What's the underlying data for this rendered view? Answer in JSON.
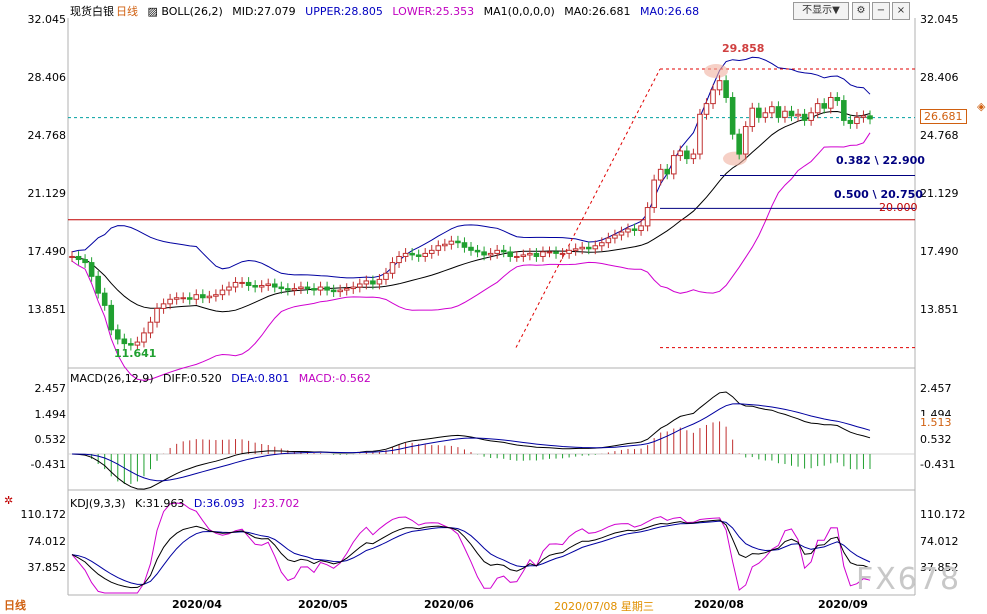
{
  "title": "现货白银",
  "period": "日线",
  "chart_data": {
    "type": "candlestick",
    "instrument": "现货白银",
    "period": "日线",
    "x_labels": [
      "2020/04",
      "2020/05",
      "2020/06",
      "2020/07/08 星期三",
      "2020/08",
      "2020/09"
    ],
    "price_axis": {
      "ticks": [
        "32.045",
        "28.406",
        "24.768",
        "21.129",
        "17.490",
        "13.851"
      ],
      "range": [
        10.5,
        33.2
      ]
    },
    "series": [
      {
        "name": "BOLL(26,2)",
        "values_label": [
          "MID:27.079",
          "UPPER:28.805",
          "LOWER:25.353"
        ]
      },
      {
        "name": "MA1(0,0,0,0)",
        "values_label": [
          "MA0:26.681",
          "MA0:26.68"
        ]
      }
    ],
    "close": [
      17.6,
      17.4,
      17.2,
      16.3,
      15.2,
      14.4,
      12.8,
      12.2,
      11.9,
      11.8,
      12.0,
      12.6,
      13.3,
      14.2,
      14.5,
      14.8,
      14.9,
      14.9,
      14.8,
      15.1,
      14.9,
      15.0,
      15.1,
      15.4,
      15.6,
      15.9,
      15.9,
      15.7,
      15.6,
      15.7,
      15.8,
      15.6,
      15.5,
      15.4,
      15.5,
      15.6,
      15.5,
      15.4,
      15.6,
      15.4,
      15.3,
      15.4,
      15.5,
      15.6,
      15.8,
      16.0,
      15.8,
      16.1,
      16.5,
      17.2,
      17.6,
      17.8,
      17.7,
      17.6,
      17.8,
      18.0,
      18.3,
      18.4,
      18.6,
      18.5,
      18.2,
      18.0,
      17.9,
      17.7,
      17.8,
      18.0,
      17.9,
      17.6,
      17.6,
      17.7,
      17.8,
      17.6,
      17.9,
      17.9,
      17.8,
      17.8,
      18.0,
      18.1,
      18.2,
      18.1,
      18.3,
      18.5,
      18.8,
      19.0,
      19.2,
      19.4,
      19.3,
      19.6,
      20.8,
      22.6,
      23.3,
      23.0,
      24.2,
      24.5,
      24.0,
      24.3,
      26.9,
      27.6,
      28.5,
      29.1,
      28.0,
      25.6,
      24.3,
      26.1,
      27.3,
      26.7,
      27.0,
      27.4,
      26.7,
      27.1,
      26.8,
      26.9,
      26.5,
      27.0,
      27.6,
      27.3,
      28.0,
      27.8,
      26.5,
      26.3,
      26.7,
      26.8,
      26.6
    ],
    "annotations": {
      "high_label": "29.858",
      "low_label": "11.641",
      "fib_382": "0.382 \\ 22.900",
      "fib_500": "0.500 \\ 20.750",
      "level": "20.000",
      "current": "26.681"
    },
    "macd": {
      "label": "MACD(26,12,9)",
      "diff": "DIFF:0.520",
      "dea": "DEA:0.801",
      "macd": "MACD:-0.562",
      "ticks": [
        "2.457",
        "1.494",
        "0.532",
        "-0.431"
      ],
      "current": "1.513"
    },
    "kdj": {
      "label": "KDJ(9,3,3)",
      "k": "K:31.963",
      "d": "D:36.093",
      "j": "J:23.702",
      "ticks": [
        "110.172",
        "74.012",
        "37.852"
      ]
    }
  },
  "ui": {
    "hide_button": "不显示▼",
    "bottom_tab": "日线",
    "watermark": "FX678"
  }
}
